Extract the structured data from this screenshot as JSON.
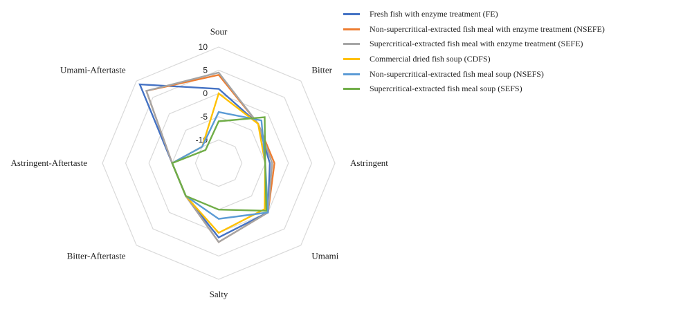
{
  "chart_data": {
    "type": "radar",
    "axes": [
      "Sour",
      "Bitter",
      "Astringent",
      "Umami",
      "Salty",
      "Bitter-Aftertaste",
      "Astringent-Aftertaste",
      "Umami-Aftertaste"
    ],
    "rlim": [
      -15,
      10
    ],
    "ticks": [
      -10,
      -5,
      0,
      5,
      10
    ],
    "tick_labels": [
      "-10",
      "-5",
      "0",
      "5",
      "10"
    ],
    "grid": true,
    "legend_position": "top-right",
    "series": [
      {
        "name": "Fresh fish with enzyme treatment (FE)",
        "color": "#4472C4",
        "values": [
          1,
          -3,
          -4,
          0,
          1,
          -5,
          -5,
          9
        ]
      },
      {
        "name": "Non-supercritical-extracted fish meal with enzyme treatment (NSEFE)",
        "color": "#ED7D31",
        "values": [
          4,
          -3,
          -3,
          0,
          2,
          -5,
          -5,
          7
        ]
      },
      {
        "name": "Supercritical-extracted fish meal with enzyme treatment (SEFE)",
        "color": "#A5A5A5",
        "values": [
          4.5,
          -3,
          -3.5,
          0,
          2,
          -5,
          -5,
          7
        ]
      },
      {
        "name": "Commercial dried fish soup (CDFS)",
        "color": "#FFC000",
        "values": [
          0,
          -3,
          -5,
          -1,
          0,
          -5,
          -5,
          -10
        ]
      },
      {
        "name": "Non-supercritical-extracted fish meal soup (NSEFS)",
        "color": "#5B9BD5",
        "values": [
          -4,
          -2,
          -5,
          0,
          -3,
          -5,
          -5,
          -10
        ]
      },
      {
        "name": "Supercritical-extracted fish meal soup (SEFS)",
        "color": "#70AD47",
        "values": [
          -6,
          -1,
          -5,
          -0.5,
          -5,
          -5,
          -5,
          -11
        ]
      }
    ]
  }
}
